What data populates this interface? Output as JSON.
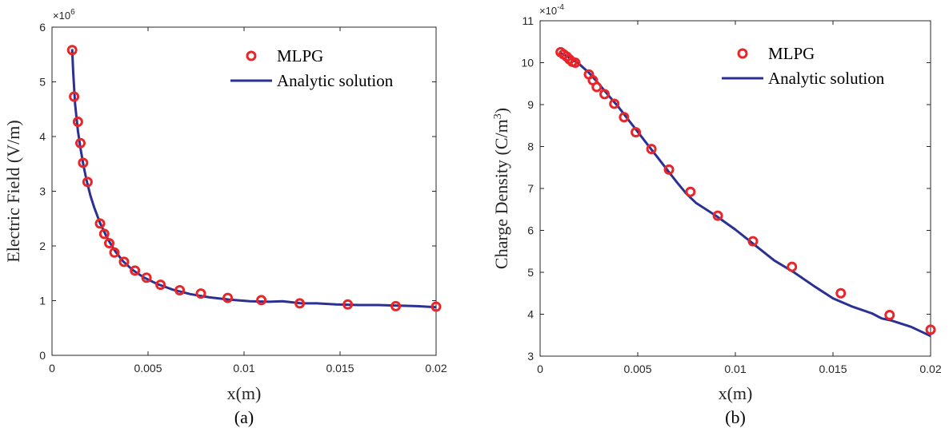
{
  "chart_data": [
    {
      "type": "scatter+line",
      "panel_label": "(a)",
      "xlabel": "x(m)",
      "ylabel": "Electric Field (V/m)",
      "y_multiplier": "×10",
      "y_multiplier_exp": "6",
      "xlim": [
        0,
        0.02
      ],
      "ylim": [
        0,
        6
      ],
      "xticks": [
        0,
        0.005,
        0.01,
        0.015,
        0.02
      ],
      "xtick_labels": [
        "0",
        "0.005",
        "0.01",
        "0.015",
        "0.02"
      ],
      "yticks": [
        0,
        1,
        2,
        3,
        4,
        5,
        6
      ],
      "ytick_labels": [
        "0",
        "1",
        "2",
        "3",
        "4",
        "5",
        "6"
      ],
      "legend_position": "top-right",
      "series": [
        {
          "name": "MLPG",
          "marker": "circle",
          "color": "#e8262a",
          "x": [
            0.00105,
            0.00115,
            0.00135,
            0.00148,
            0.00162,
            0.00185,
            0.0025,
            0.00272,
            0.00298,
            0.00325,
            0.00375,
            0.00432,
            0.00492,
            0.00565,
            0.00665,
            0.00775,
            0.00915,
            0.0109,
            0.0129,
            0.0154,
            0.0179,
            0.02
          ],
          "y": [
            5.58,
            4.73,
            4.27,
            3.88,
            3.52,
            3.17,
            2.41,
            2.22,
            2.05,
            1.88,
            1.71,
            1.55,
            1.42,
            1.29,
            1.19,
            1.13,
            1.05,
            1.01,
            0.95,
            0.93,
            0.9,
            0.89
          ]
        },
        {
          "name": "Analytic solution",
          "line": "solid",
          "color": "#2a3192",
          "x": [
            0.00105,
            0.0011,
            0.0012,
            0.00135,
            0.0015,
            0.00165,
            0.0018,
            0.002,
            0.0022,
            0.0025,
            0.0028,
            0.003,
            0.0033,
            0.0037,
            0.0042,
            0.0048,
            0.0055,
            0.0063,
            0.0072,
            0.0082,
            0.0092,
            0.0103,
            0.0113,
            0.012,
            0.013,
            0.0138,
            0.0148,
            0.016,
            0.017,
            0.018,
            0.019,
            0.02
          ],
          "y": [
            5.6,
            5.2,
            4.6,
            4.1,
            3.75,
            3.45,
            3.2,
            2.92,
            2.7,
            2.42,
            2.2,
            2.07,
            1.9,
            1.72,
            1.56,
            1.42,
            1.3,
            1.2,
            1.12,
            1.06,
            1.02,
            0.99,
            0.98,
            0.99,
            0.95,
            0.95,
            0.93,
            0.92,
            0.92,
            0.91,
            0.9,
            0.88
          ]
        }
      ]
    },
    {
      "type": "scatter+line",
      "panel_label": "(b)",
      "xlabel": "x(m)",
      "ylabel": "Charge Density (C/m",
      "ylabel_sup": "3",
      "ylabel_end": ")",
      "y_multiplier": "×10",
      "y_multiplier_exp": "-4",
      "xlim": [
        0,
        0.02
      ],
      "ylim": [
        3,
        11
      ],
      "xticks": [
        0,
        0.005,
        0.01,
        0.015,
        0.02
      ],
      "xtick_labels": [
        "0",
        "0.005",
        "0.01",
        "0.015",
        "0.02"
      ],
      "yticks": [
        3,
        4,
        5,
        6,
        7,
        8,
        9,
        10,
        11
      ],
      "ytick_labels": [
        "3",
        "4",
        "5",
        "6",
        "7",
        "8",
        "9",
        "10",
        "11"
      ],
      "legend_position": "top-right",
      "series": [
        {
          "name": "MLPG",
          "marker": "circle",
          "color": "#e8262a",
          "x": [
            0.00105,
            0.0012,
            0.00135,
            0.0015,
            0.00165,
            0.0018,
            0.0025,
            0.0027,
            0.0029,
            0.0033,
            0.0038,
            0.0043,
            0.0049,
            0.0057,
            0.0066,
            0.0077,
            0.0091,
            0.0109,
            0.0129,
            0.0154,
            0.0179,
            0.02
          ],
          "y": [
            10.25,
            10.2,
            10.15,
            10.08,
            10.02,
            10.0,
            9.72,
            9.58,
            9.42,
            9.25,
            9.02,
            8.7,
            8.34,
            7.94,
            7.45,
            6.92,
            6.35,
            5.74,
            5.13,
            4.5,
            3.98,
            3.63
          ]
        },
        {
          "name": "Analytic solution",
          "line": "solid",
          "color": "#2a3192",
          "x": [
            0.00105,
            0.0015,
            0.002,
            0.0025,
            0.003,
            0.0035,
            0.004,
            0.0045,
            0.005,
            0.0055,
            0.006,
            0.0065,
            0.007,
            0.0075,
            0.008,
            0.009,
            0.01,
            0.011,
            0.012,
            0.013,
            0.014,
            0.015,
            0.016,
            0.017,
            0.0175,
            0.018,
            0.019,
            0.02
          ],
          "y": [
            10.23,
            10.12,
            9.97,
            9.76,
            9.5,
            9.22,
            8.95,
            8.65,
            8.35,
            8.05,
            7.75,
            7.45,
            7.15,
            6.87,
            6.65,
            6.35,
            6.02,
            5.65,
            5.28,
            5.0,
            4.68,
            4.38,
            4.18,
            4.02,
            3.9,
            3.85,
            3.7,
            3.48
          ]
        }
      ]
    }
  ]
}
